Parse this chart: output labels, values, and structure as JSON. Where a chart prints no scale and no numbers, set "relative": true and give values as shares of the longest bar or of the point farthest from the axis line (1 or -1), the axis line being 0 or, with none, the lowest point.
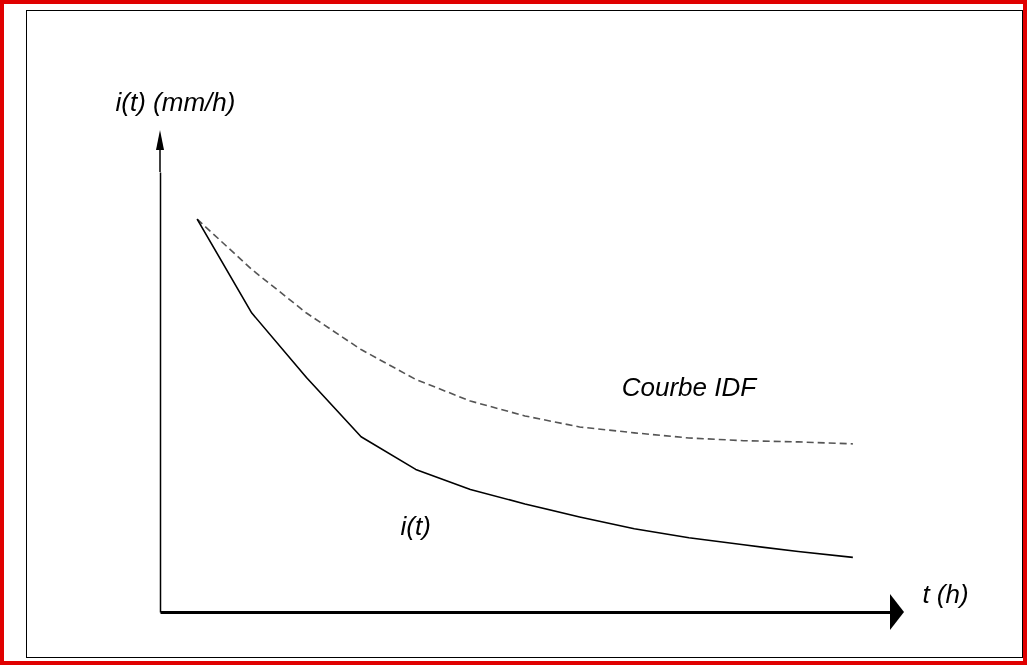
{
  "chart_data": {
    "type": "line",
    "relative": true,
    "xlabel": "t (h)",
    "ylabel": "i(t) (mm/h)",
    "tick_labels": false,
    "categories": [
      null,
      null,
      null,
      null,
      null,
      null,
      null,
      null,
      null,
      null,
      null,
      null,
      null
    ],
    "series": [
      {
        "name": "Courbe IDF",
        "color": "#555555",
        "line_style": "dashed",
        "values": [
          1,
          0.872,
          0.761,
          0.668,
          0.592,
          0.537,
          0.499,
          0.471,
          0.456,
          0.443,
          0.436,
          0.433,
          0.428
        ]
      },
      {
        "name": "i(t)",
        "color": "#000000",
        "line_style": "solid",
        "values": [
          1,
          0.761,
          0.597,
          0.446,
          0.363,
          0.312,
          0.275,
          0.242,
          0.212,
          0.189,
          0.171,
          0.154,
          0.139
        ]
      }
    ]
  }
}
